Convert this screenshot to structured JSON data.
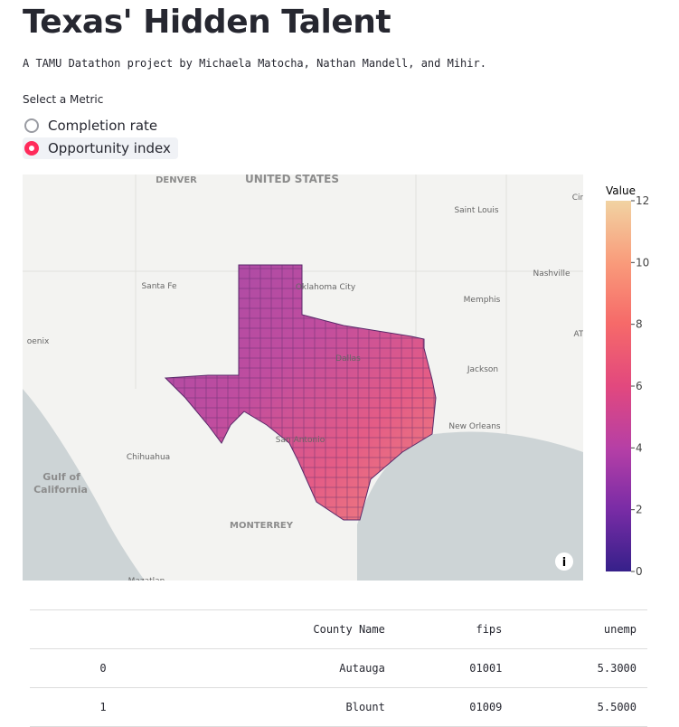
{
  "header": {
    "title": "Texas' Hidden Talent",
    "subtitle": "A TAMU Datathon project by Michaela Matocha, Nathan Mandell, and Mihir."
  },
  "metric_select": {
    "label": "Select a Metric",
    "options": [
      "Completion rate",
      "Opportunity index"
    ],
    "selected": 1
  },
  "map": {
    "labels": [
      "DENVER",
      "UNITED STATES",
      "Saint Louis",
      "Cin",
      "Nashville",
      "Santa Fe",
      "Oklahoma City",
      "Memphis",
      "oenix",
      "AT",
      "Dallas",
      "Jackson",
      "New Orleans",
      "San Antonio",
      "Chihuahua",
      "Gulf of",
      "California",
      "MONTERREY",
      "Mazatlan"
    ]
  },
  "colorbar": {
    "title": "Value",
    "range": [
      0,
      12
    ],
    "ticks": [
      0,
      2,
      4,
      6,
      8,
      10,
      12
    ]
  },
  "table": {
    "columns": [
      "",
      "County Name",
      "fips",
      "unemp"
    ],
    "rows": [
      [
        "0",
        "Autauga",
        "01001",
        "5.3000"
      ],
      [
        "1",
        "Blount",
        "01009",
        "5.5000"
      ]
    ]
  }
}
